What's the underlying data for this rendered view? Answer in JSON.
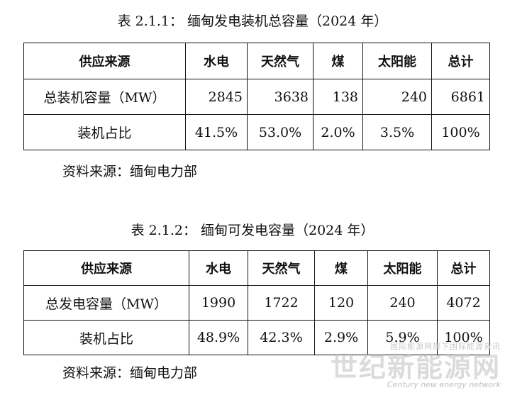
{
  "table1": {
    "caption": "表 2.1.1：   缅甸发电装机总容量（2024 年）",
    "headers": [
      "供应来源",
      "水电",
      "天然气",
      "煤",
      "太阳能",
      "总计"
    ],
    "rows": [
      {
        "label": "总装机容量（MW）",
        "values": [
          "2845",
          "3638",
          "138",
          "240",
          "6861"
        ]
      },
      {
        "label": "装机占比",
        "values": [
          "41.5%",
          "53.0%",
          "2.0%",
          "3.5%",
          "100%"
        ]
      }
    ],
    "source": "资料来源：缅甸电力部"
  },
  "table2": {
    "caption": "表 2.1.2：   缅甸可发电容量（2024 年）",
    "headers": [
      "供应来源",
      "水电",
      "天然气",
      "煤",
      "太阳能",
      "总计"
    ],
    "rows": [
      {
        "label": "总发电容量（MW）",
        "values": [
          "1990",
          "1722",
          "120",
          "240",
          "4072"
        ]
      },
      {
        "label": "装机占比",
        "values": [
          "48.9%",
          "42.3%",
          "2.9%",
          "5.9%",
          "100%"
        ]
      }
    ],
    "source": "资料来源：缅甸电力部"
  },
  "watermark": {
    "top_text": "国际能源网旗下国际能源资讯",
    "main_text": "世纪新能源网",
    "sub_text": "Century new energy network"
  }
}
